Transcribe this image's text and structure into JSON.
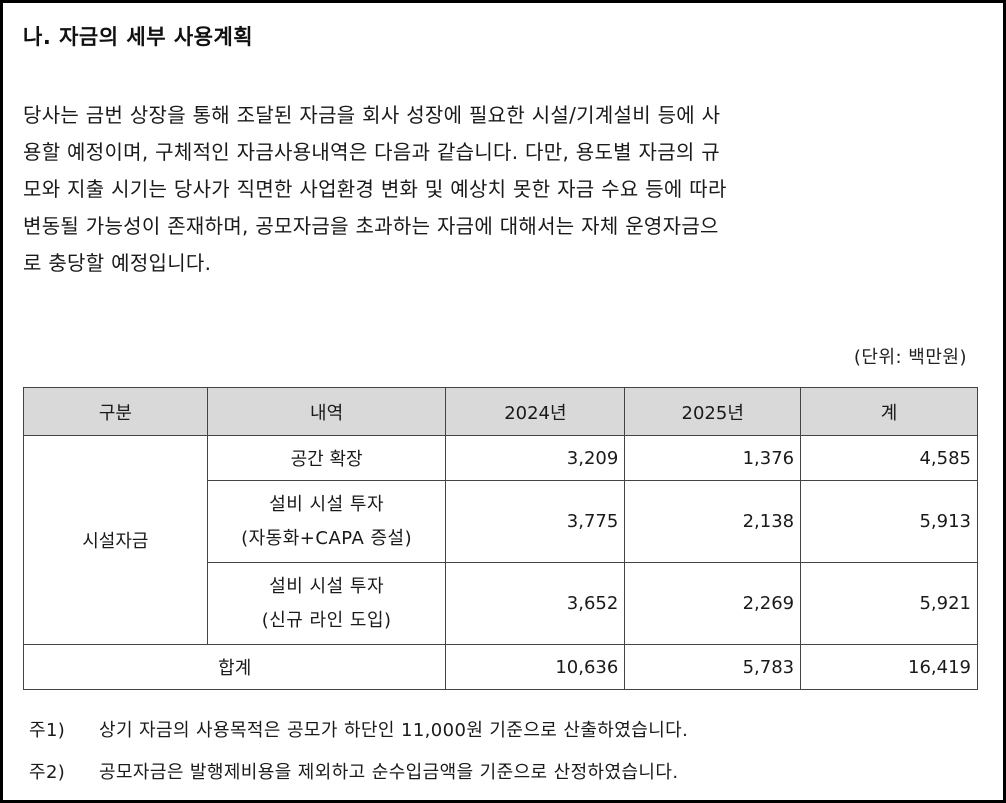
{
  "heading": "나. 자금의 세부 사용계획",
  "paragraph": "당사는 금번 상장을 통해 조달된 자금을 회사 성장에 필요한 시설/기계설비 등에 사용할 예정이며, 구체적인 자금사용내역은 다음과 같습니다. 다만, 용도별 자금의 규모와 지출 시기는 당사가 직면한 사업환경 변화 및 예상치 못한 자금 수요 등에 따라 변동될 가능성이 존재하며, 공모자금을 초과하는 자금에 대해서는 자체 운영자금으로 충당할 예정입니다.",
  "paragraph_lines": [
    "당사는 금번 상장을 통해 조달된 자금을 회사 성장에 필요한 시설/기계설비 등에 사",
    "용할 예정이며, 구체적인 자금사용내역은 다음과 같습니다. 다만, 용도별 자금의 규",
    "모와 지출 시기는 당사가 직면한 사업환경 변화 및 예상치 못한 자금 수요 등에 따라",
    "변동될 가능성이 존재하며, 공모자금을 초과하는 자금에 대해서는 자체 운영자금으",
    "로 충당할 예정입니다."
  ],
  "unit": "(단위: 백만원)",
  "table": {
    "headers": [
      "구분",
      "내역",
      "2024년",
      "2025년",
      "계"
    ],
    "category": "시설자금",
    "rows": [
      {
        "item": "공간 확장",
        "y2024": "3,209",
        "y2025": "1,376",
        "total": "4,585"
      },
      {
        "item": "설비 시설 투자\n(자동화+CAPA 증설)",
        "y2024": "3,775",
        "y2025": "2,138",
        "total": "5,913"
      },
      {
        "item": "설비 시설 투자\n(신규 라인 도입)",
        "y2024": "3,652",
        "y2025": "2,269",
        "total": "5,921"
      }
    ],
    "total": {
      "label": "합계",
      "y2024": "10,636",
      "y2025": "5,783",
      "total": "16,419"
    }
  },
  "notes": [
    {
      "mark": "주1)",
      "text": "상기 자금의 사용목적은 공모가 하단인 11,000원 기준으로 산출하였습니다."
    },
    {
      "mark": "주2)",
      "text": "공모자금은 발행제비용을 제외하고 순수입금액을 기준으로 산정하였습니다."
    }
  ]
}
